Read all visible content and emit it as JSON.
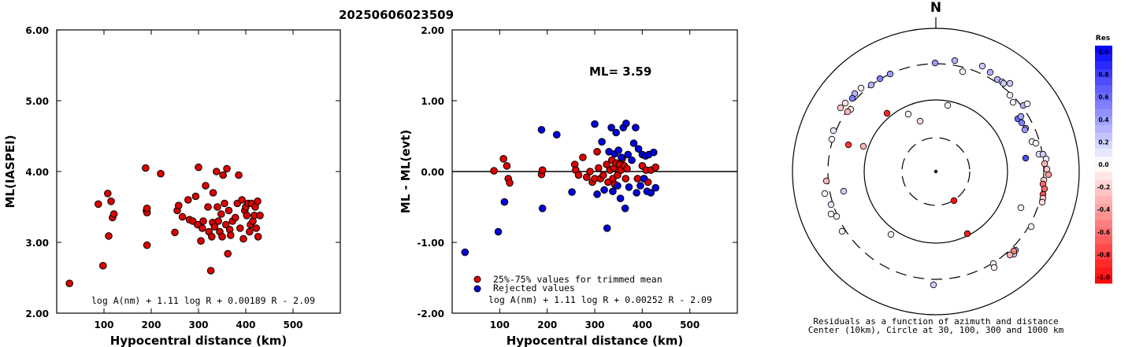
{
  "title": "20250606023509",
  "left_plot": {
    "ylabel": "ML(IASPEI)",
    "xlabel": "Hypocentral distance (km)",
    "formula": "log A(nm) + 1.11 log R + 0.00189 R - 2.09"
  },
  "mid_plot": {
    "ylabel": "ML - ML(evt)",
    "xlabel": "Hypocentral distance (km)",
    "ml_text": "ML= 3.59",
    "legend_trimmed": "25%-75% values for trimmed mean",
    "legend_rejected": "Rejected values",
    "formula": "log A(nm) + 1.11 log R + 0.00252 R - 2.09"
  },
  "polar_plot": {
    "north": "N",
    "caption1": "Residuals as a function of azimuth and distance",
    "caption2": "Center (10km), Circle at 30, 100, 300 and 1000 km"
  },
  "colorbar": {
    "title": "Res",
    "ticks": [
      "1.0",
      "0.8",
      "0.6",
      "0.4",
      "0.2",
      "0.0",
      "-0.2",
      "-0.4",
      "-0.6",
      "-0.8",
      "-1.0"
    ]
  },
  "colors": {
    "trimmed": "#dd0000",
    "rejected": "#0000dd"
  },
  "chart_data": [
    {
      "type": "scatter",
      "xlabel": "Hypocentral distance (km)",
      "ylabel": "ML(IASPEI)",
      "xlim": [
        0,
        600
      ],
      "ylim": [
        2.0,
        6.0
      ],
      "xticks": [
        100,
        200,
        300,
        400,
        500
      ],
      "yticks": [
        2.0,
        3.0,
        4.0,
        5.0,
        6.0
      ],
      "points": [
        [
          27,
          2.42
        ],
        [
          88,
          3.54
        ],
        [
          98,
          2.67
        ],
        [
          108,
          3.69
        ],
        [
          110,
          3.09
        ],
        [
          115,
          3.58
        ],
        [
          118,
          3.35
        ],
        [
          121,
          3.4
        ],
        [
          188,
          4.05
        ],
        [
          190,
          3.45
        ],
        [
          191,
          3.42
        ],
        [
          191,
          3.48
        ],
        [
          191,
          2.96
        ],
        [
          220,
          3.97
        ],
        [
          250,
          3.14
        ],
        [
          255,
          3.45
        ],
        [
          258,
          3.52
        ],
        [
          266,
          3.36
        ],
        [
          278,
          3.6
        ],
        [
          281,
          3.32
        ],
        [
          288,
          3.3
        ],
        [
          294,
          3.65
        ],
        [
          298,
          3.25
        ],
        [
          300,
          4.06
        ],
        [
          305,
          3.02
        ],
        [
          308,
          3.2
        ],
        [
          310,
          3.3
        ],
        [
          315,
          3.8
        ],
        [
          320,
          3.5
        ],
        [
          322,
          3.15
        ],
        [
          326,
          2.6
        ],
        [
          328,
          3.08
        ],
        [
          330,
          3.28
        ],
        [
          331,
          3.7
        ],
        [
          334,
          3.22
        ],
        [
          338,
          4.0
        ],
        [
          340,
          3.5
        ],
        [
          342,
          3.3
        ],
        [
          345,
          3.15
        ],
        [
          348,
          3.4
        ],
        [
          350,
          3.08
        ],
        [
          352,
          3.95
        ],
        [
          355,
          3.55
        ],
        [
          358,
          3.25
        ],
        [
          360,
          4.04
        ],
        [
          362,
          2.84
        ],
        [
          364,
          3.45
        ],
        [
          366,
          3.18
        ],
        [
          368,
          3.1
        ],
        [
          372,
          3.3
        ],
        [
          378,
          3.35
        ],
        [
          382,
          3.55
        ],
        [
          385,
          3.95
        ],
        [
          388,
          3.2
        ],
        [
          392,
          3.6
        ],
        [
          395,
          3.05
        ],
        [
          398,
          3.45
        ],
        [
          400,
          3.5
        ],
        [
          402,
          3.38
        ],
        [
          405,
          3.55
        ],
        [
          408,
          3.15
        ],
        [
          410,
          3.25
        ],
        [
          412,
          3.55
        ],
        [
          415,
          3.3
        ],
        [
          418,
          3.38
        ],
        [
          420,
          3.5
        ],
        [
          422,
          3.2
        ],
        [
          425,
          3.58
        ],
        [
          426,
          3.08
        ],
        [
          430,
          3.38
        ]
      ]
    },
    {
      "type": "scatter",
      "xlabel": "Hypocentral distance (km)",
      "ylabel": "ML - ML(evt)",
      "xlim": [
        0,
        600
      ],
      "ylim": [
        -2.0,
        2.0
      ],
      "xticks": [
        100,
        200,
        300,
        400,
        500
      ],
      "yticks": [
        -2.0,
        -1.0,
        0.0,
        1.0,
        2.0
      ],
      "annotation": "ML= 3.59",
      "series": [
        {
          "name": "25%-75% values for trimmed mean",
          "color": "#dd0000",
          "points": [
            [
              88,
              0.01
            ],
            [
              108,
              0.18
            ],
            [
              115,
              0.08
            ],
            [
              118,
              -0.1
            ],
            [
              121,
              -0.16
            ],
            [
              188,
              -0.04
            ],
            [
              190,
              0.02
            ],
            [
              258,
              0.1
            ],
            [
              260,
              0.02
            ],
            [
              266,
              -0.05
            ],
            [
              275,
              0.2
            ],
            [
              283,
              -0.08
            ],
            [
              290,
              0.0
            ],
            [
              295,
              -0.15
            ],
            [
              300,
              -0.1
            ],
            [
              305,
              0.28
            ],
            [
              308,
              0.05
            ],
            [
              312,
              -0.1
            ],
            [
              318,
              -0.05
            ],
            [
              325,
              0.1
            ],
            [
              328,
              -0.15
            ],
            [
              332,
              0.02
            ],
            [
              336,
              0.16
            ],
            [
              338,
              -0.1
            ],
            [
              340,
              0.05
            ],
            [
              342,
              -0.18
            ],
            [
              345,
              0.12
            ],
            [
              348,
              -0.05
            ],
            [
              352,
              0.1
            ],
            [
              355,
              0.02
            ],
            [
              358,
              0.18
            ],
            [
              362,
              0.08
            ],
            [
              365,
              -0.1
            ],
            [
              368,
              0.04
            ],
            [
              390,
              -0.1
            ],
            [
              400,
              0.08
            ],
            [
              404,
              -0.1
            ],
            [
              408,
              0.02
            ],
            [
              412,
              -0.15
            ],
            [
              418,
              0.02
            ],
            [
              428,
              0.06
            ]
          ]
        },
        {
          "name": "Rejected values",
          "color": "#0000dd",
          "points": [
            [
              27,
              -1.14
            ],
            [
              97,
              -0.85
            ],
            [
              110,
              -0.43
            ],
            [
              188,
              0.59
            ],
            [
              190,
              -0.52
            ],
            [
              220,
              0.52
            ],
            [
              252,
              -0.29
            ],
            [
              300,
              0.67
            ],
            [
              305,
              -0.32
            ],
            [
              315,
              0.42
            ],
            [
              320,
              -0.26
            ],
            [
              326,
              -0.8
            ],
            [
              330,
              0.28
            ],
            [
              335,
              0.62
            ],
            [
              338,
              -0.28
            ],
            [
              342,
              0.25
            ],
            [
              345,
              0.55
            ],
            [
              348,
              -0.2
            ],
            [
              350,
              0.3
            ],
            [
              354,
              -0.38
            ],
            [
              356,
              0.2
            ],
            [
              360,
              0.62
            ],
            [
              364,
              -0.52
            ],
            [
              366,
              0.68
            ],
            [
              370,
              0.24
            ],
            [
              372,
              -0.22
            ],
            [
              378,
              0.16
            ],
            [
              382,
              0.4
            ],
            [
              386,
              0.62
            ],
            [
              388,
              -0.3
            ],
            [
              392,
              0.32
            ],
            [
              396,
              -0.2
            ],
            [
              400,
              0.24
            ],
            [
              403,
              -0.1
            ],
            [
              407,
              0.22
            ],
            [
              410,
              -0.28
            ],
            [
              414,
              0.24
            ],
            [
              418,
              -0.3
            ],
            [
              424,
              0.27
            ],
            [
              428,
              -0.23
            ]
          ]
        }
      ]
    }
  ]
}
